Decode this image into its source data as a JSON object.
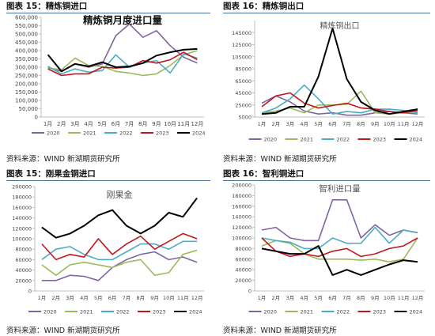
{
  "source_text": "资料来源：WIND 新湖期货研究所",
  "colors": {
    "2020": "#8064a2",
    "2021": "#9bbb59",
    "2022": "#4bacc6",
    "2023": "#c0171d",
    "2024": "#000000"
  },
  "chart_data": [
    {
      "type": "line",
      "panel_title": "图表 15：精炼铜进口",
      "title": "精炼铜月度进口量",
      "categories": [
        "1月",
        "2月",
        "3月",
        "4月",
        "5月",
        "6月",
        "7月",
        "8月",
        "9月",
        "10月",
        "11月",
        "12月"
      ],
      "ylim": [
        0,
        600000
      ],
      "yticks": [
        0,
        50000,
        100000,
        150000,
        200000,
        250000,
        300000,
        350000,
        400000,
        450000,
        500000,
        550000,
        600000
      ],
      "ytick_labels": [
        "0",
        "50,000",
        "100,000",
        "150,000",
        "200,000",
        "250,000",
        "300,000",
        "350,000",
        "400,000",
        "450,000",
        "500,000",
        "550,000",
        "600,000"
      ],
      "grid": false,
      "legend": "bottom",
      "series": [
        {
          "name": "2020",
          "values": [
            300000,
            275000,
            320000,
            300000,
            320000,
            490000,
            560000,
            480000,
            520000,
            430000,
            360000,
            325000
          ]
        },
        {
          "name": "2021",
          "values": [
            295000,
            285000,
            355000,
            310000,
            305000,
            275000,
            265000,
            250000,
            260000,
            310000,
            375000,
            400000
          ]
        },
        {
          "name": "2022",
          "values": [
            305000,
            260000,
            290000,
            270000,
            280000,
            375000,
            300000,
            325000,
            340000,
            265000,
            380000,
            355000
          ]
        },
        {
          "name": "2023",
          "values": [
            290000,
            250000,
            260000,
            260000,
            300000,
            295000,
            300000,
            340000,
            325000,
            345000,
            390000,
            345000
          ]
        },
        {
          "name": "2024",
          "values": [
            375000,
            275000,
            320000,
            305000,
            330000,
            300000,
            305000,
            325000,
            370000,
            390000,
            405000,
            410000
          ]
        }
      ]
    },
    {
      "type": "line",
      "panel_title": "图表 16：精炼铜出口",
      "title": "精炼铜出口",
      "categories": [
        "1月",
        "2月",
        "3月",
        "4月",
        "5月",
        "6月",
        "7月",
        "8月",
        "9月",
        "10月",
        "11月",
        "12月"
      ],
      "ylim": [
        5000,
        165000
      ],
      "yticks": [
        5000,
        25000,
        45000,
        65000,
        85000,
        105000,
        125000,
        145000
      ],
      "ytick_labels": [
        "5000",
        "25000",
        "45000",
        "65000",
        "85000",
        "105000",
        "125000",
        "145000"
      ],
      "grid": false,
      "legend": "bottom",
      "series": [
        {
          "name": "2020",
          "values": [
            28000,
            40000,
            30000,
            15000,
            10000,
            12000,
            8000,
            8000,
            12000,
            14000,
            12000,
            10000
          ]
        },
        {
          "name": "2021",
          "values": [
            12000,
            15000,
            20000,
            12000,
            25000,
            25000,
            26000,
            48000,
            12000,
            10000,
            12000,
            14000
          ]
        },
        {
          "name": "2022",
          "values": [
            12000,
            20000,
            35000,
            58000,
            35000,
            10000,
            14000,
            12000,
            18000,
            18000,
            16000,
            12000
          ]
        },
        {
          "name": "2023",
          "values": [
            22000,
            40000,
            45000,
            28000,
            20000,
            24000,
            28000,
            20000,
            18000,
            14000,
            12000,
            16000
          ]
        },
        {
          "name": "2024",
          "values": [
            10000,
            12000,
            22000,
            22000,
            72000,
            152000,
            68000,
            30000,
            16000,
            10000,
            14000,
            18000
          ]
        }
      ]
    },
    {
      "type": "line",
      "panel_title": "图表 15：刚果金铜进口",
      "title": "刚果金",
      "categories": [
        "1月",
        "2月",
        "3月",
        "4月",
        "5月",
        "6月",
        "7月",
        "8月",
        "9月",
        "10月",
        "11月",
        "12月"
      ],
      "ylim": [
        0,
        200000
      ],
      "yticks": [
        0,
        20000,
        40000,
        60000,
        80000,
        100000,
        120000,
        140000,
        160000,
        180000,
        200000
      ],
      "ytick_labels": [
        "0",
        "20000",
        "40000",
        "60000",
        "80000",
        "100000",
        "120000",
        "140000",
        "160000",
        "180000",
        "200000"
      ],
      "grid": false,
      "legend": "bottom",
      "series": [
        {
          "name": "2020",
          "values": [
            20000,
            20000,
            30000,
            28000,
            20000,
            45000,
            60000,
            70000,
            75000,
            60000,
            65000,
            55000
          ]
        },
        {
          "name": "2021",
          "values": [
            50000,
            30000,
            50000,
            55000,
            50000,
            45000,
            55000,
            60000,
            30000,
            35000,
            70000,
            78000
          ]
        },
        {
          "name": "2022",
          "values": [
            60000,
            80000,
            85000,
            70000,
            60000,
            60000,
            75000,
            90000,
            90000,
            80000,
            95000,
            95000
          ]
        },
        {
          "name": "2023",
          "values": [
            90000,
            60000,
            70000,
            65000,
            100000,
            70000,
            90000,
            105000,
            80000,
            95000,
            110000,
            100000
          ]
        },
        {
          "name": "2024",
          "values": [
            122000,
            102000,
            110000,
            125000,
            145000,
            155000,
            125000,
            110000,
            125000,
            150000,
            142000,
            178000
          ]
        }
      ]
    },
    {
      "type": "line",
      "panel_title": "图表 16：智利铜进口",
      "title": "智利进口量",
      "categories": [
        "1月",
        "2月",
        "3月",
        "4月",
        "5月",
        "6月",
        "7月",
        "8月",
        "9月",
        "10月",
        "11月",
        "12月"
      ],
      "ylim": [
        0,
        200000
      ],
      "yticks": [
        0,
        20000,
        40000,
        60000,
        80000,
        100000,
        120000,
        140000,
        160000,
        180000,
        200000
      ],
      "ytick_labels": [
        "0",
        "20000",
        "40000",
        "60000",
        "80000",
        "100000",
        "120000",
        "140000",
        "160000",
        "180000",
        "200000"
      ],
      "grid": false,
      "legend": "bottom",
      "series": [
        {
          "name": "2020",
          "values": [
            115000,
            120000,
            100000,
            95000,
            95000,
            172000,
            172000,
            100000,
            125000,
            105000,
            115000,
            110000
          ]
        },
        {
          "name": "2021",
          "values": [
            85000,
            95000,
            90000,
            70000,
            60000,
            60000,
            60000,
            58000,
            60000,
            55000,
            60000,
            100000
          ]
        },
        {
          "name": "2022",
          "values": [
            100000,
            95000,
            92000,
            80000,
            80000,
            100000,
            90000,
            90000,
            120000,
            90000,
            115000,
            110000
          ]
        },
        {
          "name": "2023",
          "values": [
            100000,
            75000,
            65000,
            70000,
            65000,
            75000,
            80000,
            65000,
            70000,
            80000,
            85000,
            100000
          ]
        },
        {
          "name": "2024",
          "values": [
            80000,
            75000,
            70000,
            70000,
            85000,
            30000,
            40000,
            30000,
            40000,
            50000,
            58000,
            55000
          ]
        }
      ]
    }
  ]
}
